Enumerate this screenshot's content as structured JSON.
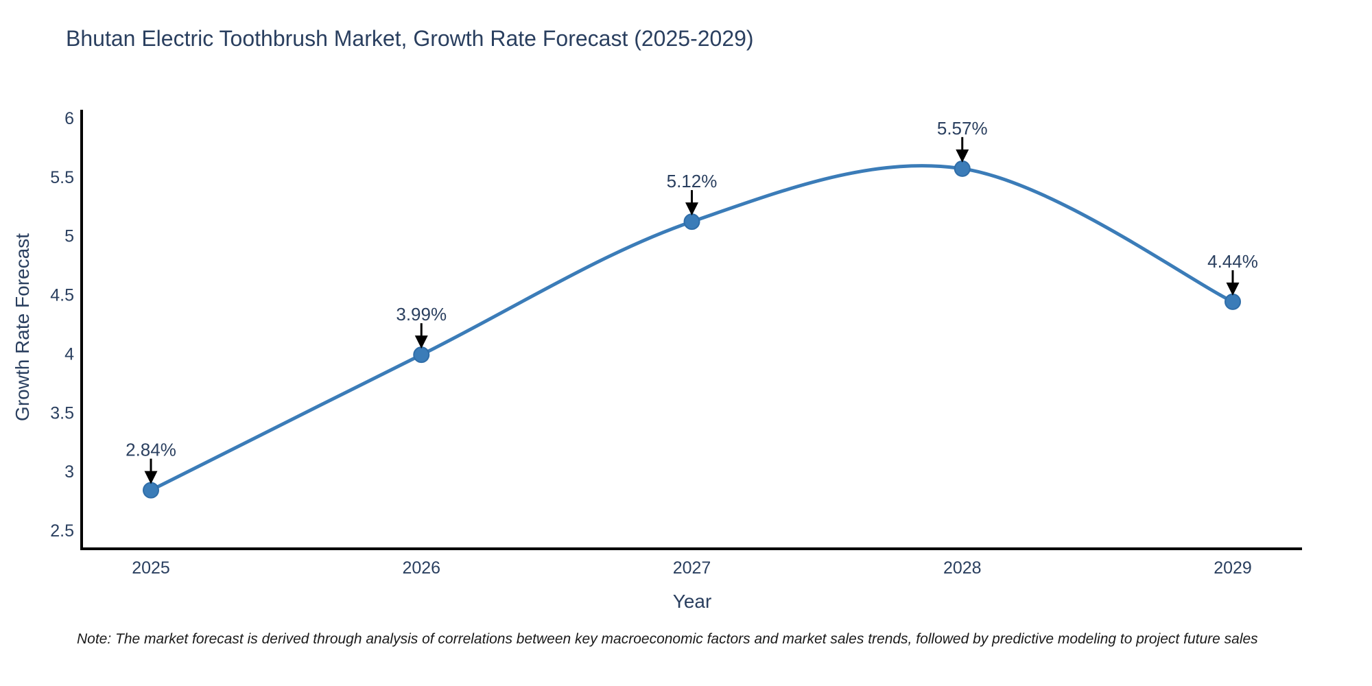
{
  "figure": {
    "note": "Note: The market forecast is derived through analysis of correlations between key macroeconomic factors and market sales trends, followed by predictive modeling to project future sales"
  },
  "colors": {
    "accent_line": "#3b7cb8",
    "marker_fill": "#3b7cb8",
    "marker_edge": "#2f6da8",
    "axis_line": "#000000",
    "tick_text": "#2a3f5f",
    "annotation_text": "#2a3f5f",
    "arrow": "#000000",
    "background": "#ffffff"
  },
  "chart_data": {
    "type": "line",
    "line_shape": "spline",
    "title": "Bhutan Electric Toothbrush Market, Growth Rate Forecast (2025-2029)",
    "xlabel": "Year",
    "ylabel": "Growth Rate Forecast",
    "x": [
      "2025",
      "2026",
      "2027",
      "2028",
      "2029"
    ],
    "series": [
      {
        "name": "Growth Rate Forecast",
        "values": [
          2.84,
          3.99,
          5.12,
          5.57,
          4.44
        ],
        "point_labels": [
          "2.84%",
          "3.99%",
          "5.12%",
          "5.57%",
          "4.44%"
        ]
      }
    ],
    "ylim": [
      2.5,
      6
    ],
    "yticks": [
      "2.5",
      "3",
      "3.5",
      "4",
      "4.5",
      "5",
      "5.5",
      "6"
    ],
    "grid": false,
    "legend": "none",
    "annotation_style": "black downward arrow from each label to its marker"
  }
}
